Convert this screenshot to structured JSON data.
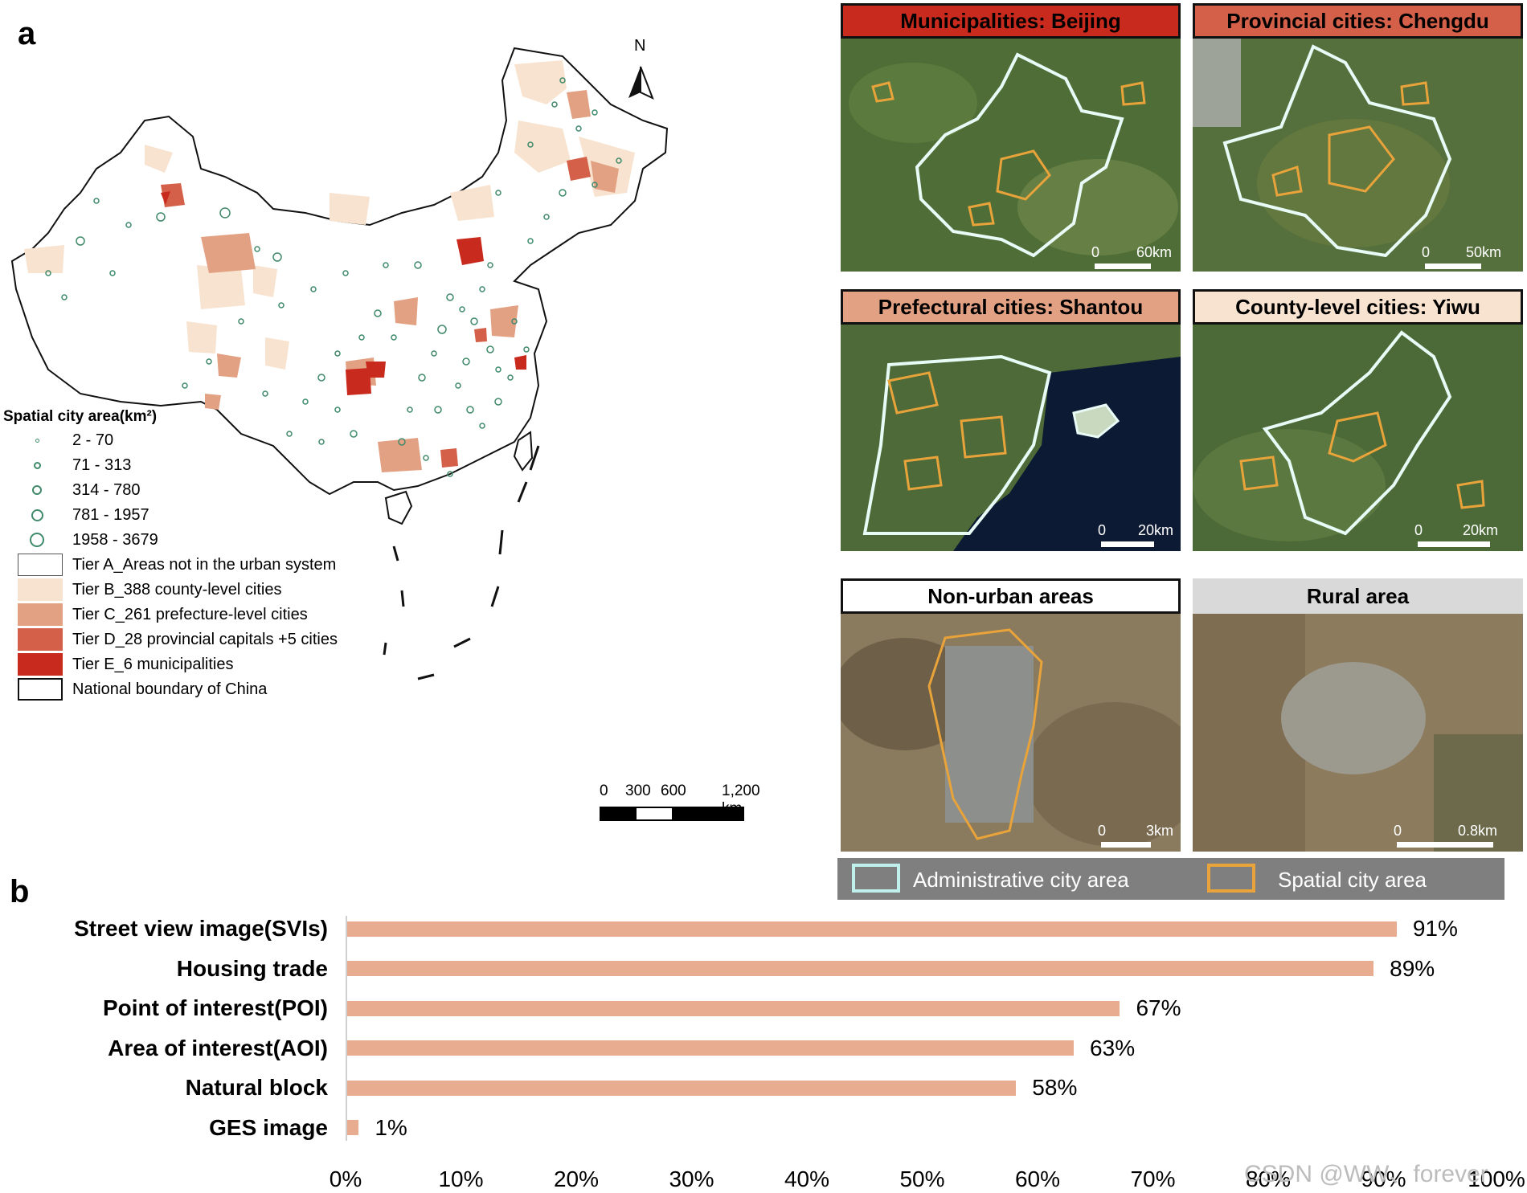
{
  "panel_a": {
    "letter": "a",
    "north_label": "N",
    "legend_title": "Spatial city area(km²)",
    "size_classes": [
      "2 - 70",
      "71 - 313",
      "314 - 780",
      "781 - 1957",
      "1958 - 3679"
    ],
    "tiers": [
      {
        "label": "Tier A_Areas not in the urban system",
        "color": "#ffffff"
      },
      {
        "label": "Tier B_388 county-level cities",
        "color": "#f7e3cf"
      },
      {
        "label": "Tier C_261 prefecture-level cities",
        "color": "#e3a184"
      },
      {
        "label": "Tier D_28 provincial capitals +5 cities",
        "color": "#d4604a"
      },
      {
        "label": "Tier E_6 municipalities",
        "color": "#c92a1e"
      },
      {
        "label": "National boundary of China",
        "color": "#ffffff"
      }
    ],
    "scale_labels": [
      "0",
      "300",
      "600",
      "1,200 km"
    ],
    "colors": {
      "circle_stroke": "#3f8a6a"
    }
  },
  "thumbnails": [
    {
      "title": "Municipalities: Beijing",
      "title_color": "#c92a1e",
      "scale_left": "0",
      "scale_right": "60km"
    },
    {
      "title": "Provincial cities: Chengdu",
      "title_color": "#d4604a",
      "scale_left": "0",
      "scale_right": "50km"
    },
    {
      "title": "Prefectural cities: Shantou",
      "title_color": "#e3a184",
      "scale_left": "0",
      "scale_right": "20km"
    },
    {
      "title": "County-level cities: Yiwu",
      "title_color": "#f7e3cf",
      "scale_left": "0",
      "scale_right": "20km"
    },
    {
      "title": "Non-urban areas",
      "title_color": "#ffffff",
      "scale_left": "0",
      "scale_right": "3km"
    },
    {
      "title": "Rural area",
      "title_color": "#d9d9d9",
      "scale_left": "0",
      "scale_right": "0.8km"
    }
  ],
  "image_legend": {
    "admin_label": "Administrative city area",
    "spatial_label": "Spatial city area",
    "admin_color": "#bff0ec",
    "spatial_color": "#e8a33a",
    "background": "#7f7f7f"
  },
  "panel_b": {
    "letter": "b",
    "chart_data": {
      "type": "bar",
      "orientation": "horizontal",
      "categories": [
        "Street view image(SVIs)",
        "Housing trade",
        "Point of interest(POI)",
        "Area of interest(AOI)",
        "Natural block",
        "GES image"
      ],
      "values": [
        91,
        89,
        67,
        63,
        58,
        1
      ],
      "value_labels": [
        "91%",
        "89%",
        "67%",
        "63%",
        "58%",
        "1%"
      ],
      "xlim": [
        0,
        100
      ],
      "xticks": [
        "0%",
        "10%",
        "20%",
        "30%",
        "40%",
        "50%",
        "60%",
        "70%",
        "80%",
        "90%",
        "100%"
      ],
      "bar_color": "#e8ac90",
      "grid": false
    }
  },
  "watermark": "CSDN @WW、forever"
}
